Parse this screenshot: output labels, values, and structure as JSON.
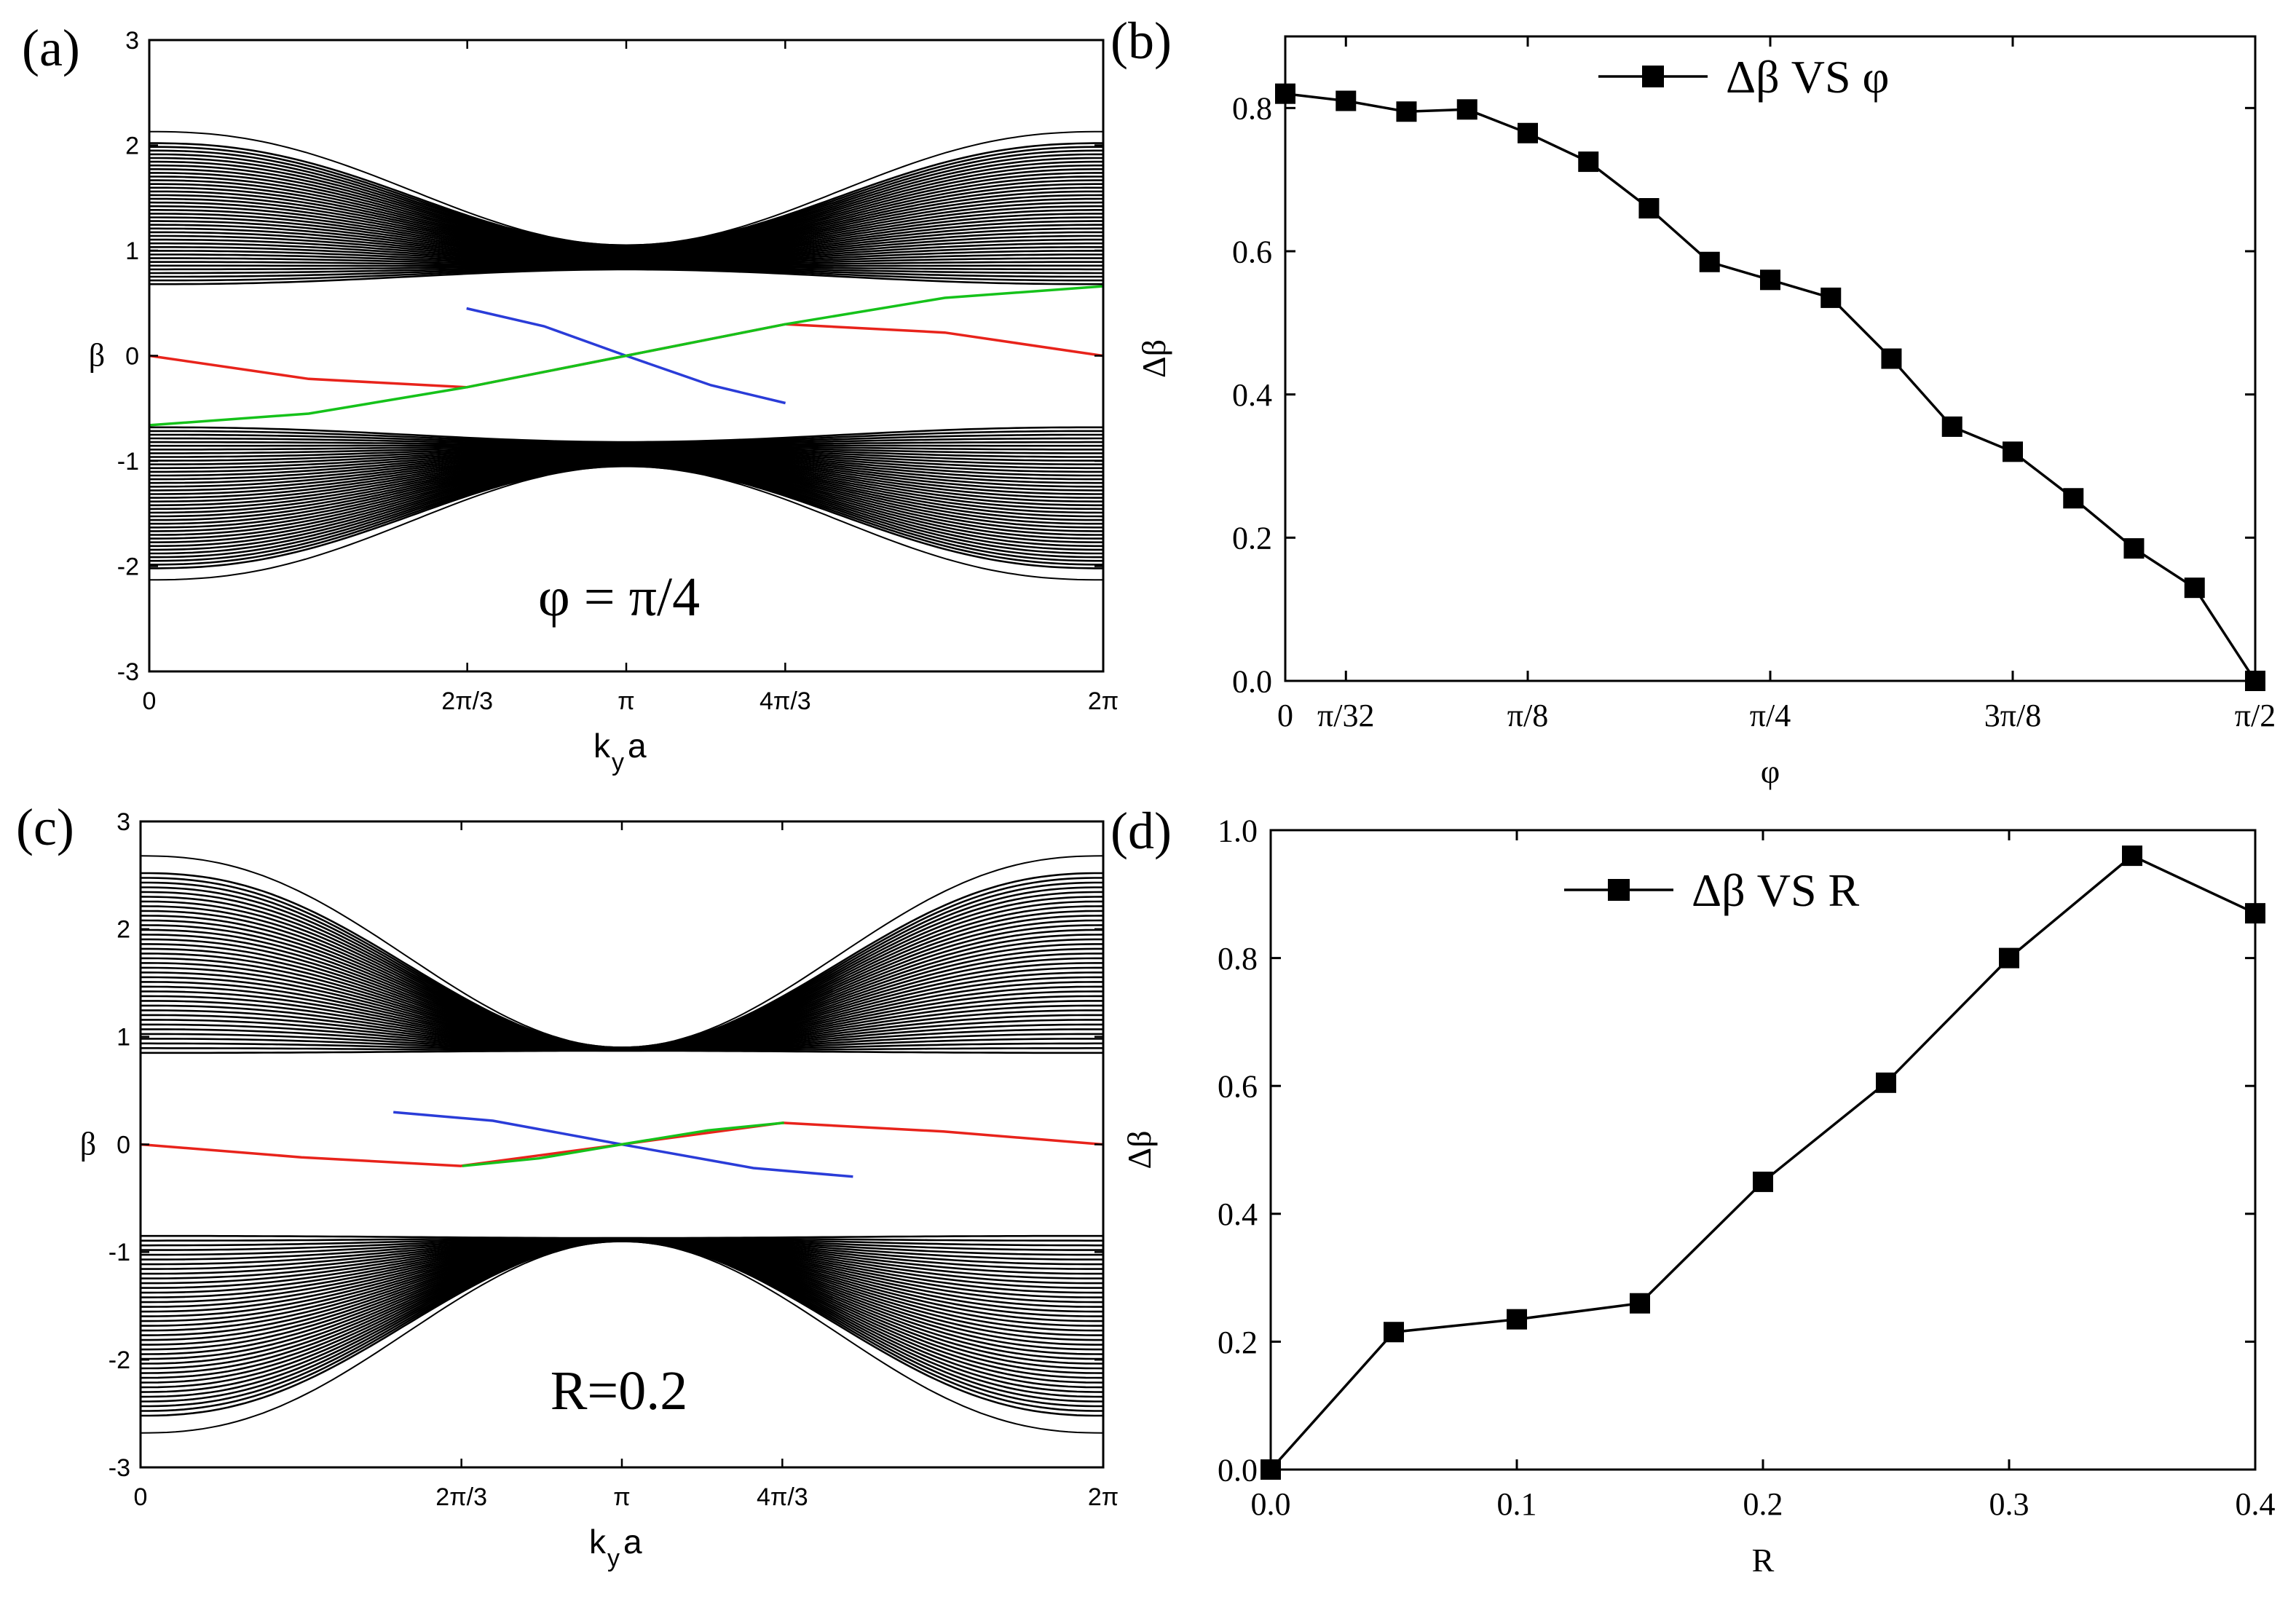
{
  "chart_data": [
    {
      "panel": "(a)",
      "type": "line",
      "title": "",
      "xlabel": "k",
      "xlabel_sub": "y",
      "xlabel_tail": "a",
      "ylabel": "β",
      "annotation": "φ = π/4",
      "xlim": [
        0,
        6.2832
      ],
      "ylim": [
        -3,
        3
      ],
      "xticks": [
        {
          "value": 0,
          "label": "0"
        },
        {
          "value": 2.0944,
          "label": "2π/3"
        },
        {
          "value": 3.1416,
          "label": "π"
        },
        {
          "value": 4.1888,
          "label": "4π/3"
        },
        {
          "value": 6.2832,
          "label": "2π"
        }
      ],
      "yticks": [
        {
          "value": 3,
          "label": "3"
        },
        {
          "value": 2,
          "label": "2"
        },
        {
          "value": 1,
          "label": "1"
        },
        {
          "value": 0,
          "label": "0"
        },
        {
          "value": -1,
          "label": "-1"
        },
        {
          "value": -2,
          "label": "-2"
        },
        {
          "value": -3,
          "label": "-3"
        }
      ],
      "bulk_bands": {
        "color": "#000000",
        "upper_band": {
          "edge_at_0": 0.68,
          "edge_at_pi": 0.82,
          "outer_at_0": 2.02,
          "outer_at_pi": 1.05
        },
        "lower_band": {
          "edge_at_0": -0.68,
          "edge_at_pi": -0.82,
          "outer_at_0": -2.02,
          "outer_at_pi": -1.05
        },
        "envelope_max": 2.13
      },
      "edge_states": [
        {
          "name": "red",
          "color": "#e8231b",
          "x": [
            0,
            1.05,
            2.09,
            3.14,
            4.19,
            5.24,
            6.28
          ],
          "y": [
            0.0,
            -0.22,
            -0.3,
            0.0,
            0.3,
            0.22,
            0.0
          ]
        },
        {
          "name": "blue",
          "color": "#2a3cd8",
          "x": [
            2.09,
            2.6,
            3.14,
            3.7,
            4.19
          ],
          "y": [
            0.45,
            0.28,
            0.0,
            -0.28,
            -0.45
          ]
        },
        {
          "name": "green",
          "color": "#15c21a",
          "x": [
            0,
            1.05,
            2.09,
            3.14,
            4.19,
            5.24,
            6.28
          ],
          "y": [
            -0.66,
            -0.55,
            -0.3,
            0.0,
            0.3,
            0.55,
            0.66
          ]
        }
      ]
    },
    {
      "panel": "(b)",
      "type": "line",
      "title": "",
      "xlabel": "φ",
      "ylabel": "Δβ",
      "legend": "Δβ VS φ",
      "legend_position": "top-right",
      "xlim": [
        0,
        1.5708
      ],
      "ylim": [
        0,
        0.9
      ],
      "xticks": [
        {
          "value": 0,
          "label": "0"
        },
        {
          "value": 0.0982,
          "label": "π/32"
        },
        {
          "value": 0.3927,
          "label": "π/8"
        },
        {
          "value": 0.7854,
          "label": "π/4"
        },
        {
          "value": 1.1781,
          "label": "3π/8"
        },
        {
          "value": 1.5708,
          "label": "π/2"
        }
      ],
      "yticks": [
        {
          "value": 0.0,
          "label": "0.0"
        },
        {
          "value": 0.2,
          "label": "0.2"
        },
        {
          "value": 0.4,
          "label": "0.4"
        },
        {
          "value": 0.6,
          "label": "0.6"
        },
        {
          "value": 0.8,
          "label": "0.8"
        }
      ],
      "series": [
        {
          "name": "Δβ VS φ",
          "x": [
            0,
            0.0982,
            0.1963,
            0.2945,
            0.3927,
            0.4909,
            0.589,
            0.6872,
            0.7854,
            0.8836,
            0.9817,
            1.0799,
            1.1781,
            1.2763,
            1.3744,
            1.4726,
            1.5708
          ],
          "values": [
            0.82,
            0.81,
            0.795,
            0.798,
            0.765,
            0.725,
            0.66,
            0.585,
            0.56,
            0.535,
            0.45,
            0.355,
            0.32,
            0.255,
            0.185,
            0.13,
            0.0
          ]
        }
      ]
    },
    {
      "panel": "(c)",
      "type": "line",
      "title": "",
      "xlabel": "k",
      "xlabel_sub": "y",
      "xlabel_tail": "a",
      "ylabel": "β",
      "annotation": "R=0.2",
      "xlim": [
        0,
        6.2832
      ],
      "ylim": [
        -3,
        3
      ],
      "xticks": [
        {
          "value": 0,
          "label": "0"
        },
        {
          "value": 2.0944,
          "label": "2π/3"
        },
        {
          "value": 3.1416,
          "label": "π"
        },
        {
          "value": 4.1888,
          "label": "4π/3"
        },
        {
          "value": 6.2832,
          "label": "2π"
        }
      ],
      "yticks": [
        {
          "value": 3,
          "label": "3"
        },
        {
          "value": 2,
          "label": "2"
        },
        {
          "value": 1,
          "label": "1"
        },
        {
          "value": 0,
          "label": "0"
        },
        {
          "value": -1,
          "label": "-1"
        },
        {
          "value": -2,
          "label": "-2"
        },
        {
          "value": -3,
          "label": "-3"
        }
      ],
      "bulk_bands": {
        "color": "#000000",
        "upper_band": {
          "edge_at_0": 0.85,
          "edge_at_pi": 0.87,
          "outer_at_0": 2.52,
          "outer_at_pi": 0.9
        },
        "lower_band": {
          "edge_at_0": -0.85,
          "edge_at_pi": -0.87,
          "outer_at_0": -2.52,
          "outer_at_pi": -0.9
        },
        "envelope_max": 2.68
      },
      "edge_states": [
        {
          "name": "red",
          "color": "#e8231b",
          "x": [
            0,
            1.05,
            2.09,
            3.14,
            4.19,
            5.24,
            6.28
          ],
          "y": [
            0.0,
            -0.12,
            -0.2,
            0.0,
            0.2,
            0.12,
            0.0
          ]
        },
        {
          "name": "blue",
          "color": "#2a3cd8",
          "x": [
            1.65,
            2.3,
            3.14,
            4.0,
            4.65
          ],
          "y": [
            0.3,
            0.22,
            0.0,
            -0.22,
            -0.3
          ]
        },
        {
          "name": "green",
          "color": "#15c21a",
          "x": [
            2.1,
            2.6,
            3.14,
            3.7,
            4.2
          ],
          "y": [
            -0.2,
            -0.13,
            0.0,
            0.13,
            0.2
          ]
        }
      ]
    },
    {
      "panel": "(d)",
      "type": "line",
      "title": "",
      "xlabel": "R",
      "ylabel": "Δβ",
      "legend": "Δβ VS R",
      "legend_position": "top-right",
      "xlim": [
        0,
        0.4
      ],
      "ylim": [
        0,
        1.0
      ],
      "xticks": [
        {
          "value": 0.0,
          "label": "0.0"
        },
        {
          "value": 0.1,
          "label": "0.1"
        },
        {
          "value": 0.2,
          "label": "0.2"
        },
        {
          "value": 0.3,
          "label": "0.3"
        },
        {
          "value": 0.4,
          "label": "0.4"
        }
      ],
      "yticks": [
        {
          "value": 0.0,
          "label": "0.0"
        },
        {
          "value": 0.2,
          "label": "0.2"
        },
        {
          "value": 0.4,
          "label": "0.4"
        },
        {
          "value": 0.6,
          "label": "0.6"
        },
        {
          "value": 0.8,
          "label": "0.8"
        },
        {
          "value": 1.0,
          "label": "1.0"
        }
      ],
      "series": [
        {
          "name": "Δβ VS R",
          "x": [
            0.0,
            0.05,
            0.1,
            0.15,
            0.2,
            0.25,
            0.3,
            0.35,
            0.4
          ],
          "values": [
            0.0,
            0.215,
            0.235,
            0.26,
            0.45,
            0.605,
            0.8,
            0.96,
            0.87
          ]
        }
      ]
    }
  ]
}
